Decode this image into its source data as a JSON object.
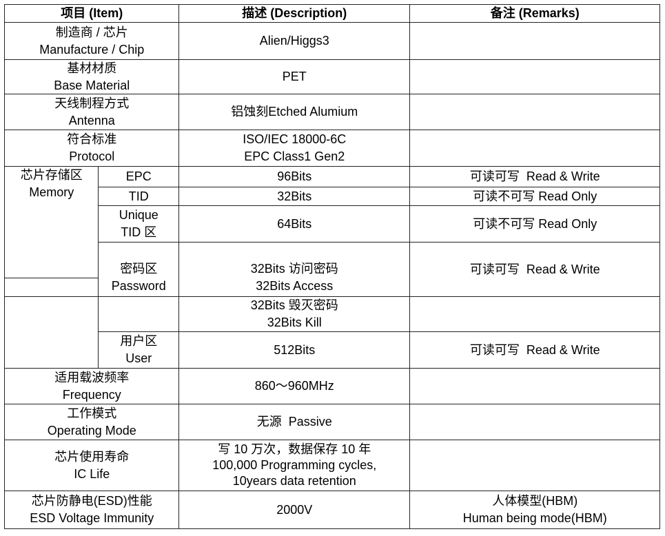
{
  "header": {
    "item": "项目 (Item)",
    "description": "描述 (Description)",
    "remarks": "备注 (Remarks)"
  },
  "rows": {
    "chip": {
      "item_cn": "制造商 / 芯片",
      "item_en": "Manufacture / Chip",
      "desc": "Alien/Higgs3",
      "remark": ""
    },
    "base": {
      "item_cn": "基材材质",
      "item_en": "Base Material",
      "desc": "PET",
      "remark": ""
    },
    "antenna": {
      "item_cn": "天线制程方式",
      "item_en": "Antenna",
      "desc": "铝蚀刻Etched Alumium",
      "remark": ""
    },
    "protocol": {
      "item_cn": "符合标准",
      "item_en": "Protocol",
      "desc1": "ISO/IEC 18000-6C",
      "desc2": "EPC Class1 Gen2",
      "remark": ""
    },
    "memory": {
      "item_cn": "芯片存储区",
      "item_en": "Memory",
      "epc": {
        "label": "EPC",
        "desc": "96Bits",
        "remark": "可读可写  Read & Write"
      },
      "tid": {
        "label": "TID",
        "desc": "32Bits",
        "remark": "可读不可写 Read Only"
      },
      "unique": {
        "label1": "Unique",
        "label2": "TID 区",
        "desc": "64Bits",
        "remark": "可读不可写 Read Only"
      },
      "password": {
        "label_cn": "密码区",
        "label_en": "Password",
        "desc1": "32Bits 访问密码",
        "desc2": "32Bits Access",
        "remark": "可读可写  Read & Write"
      },
      "kill": {
        "desc1": "32Bits 毁灭密码",
        "desc2": "32Bits Kill"
      },
      "user": {
        "label_cn": "用户区",
        "label_en": "User",
        "desc": "512Bits",
        "remark": "可读可写  Read & Write"
      }
    },
    "frequency": {
      "item_cn": "适用载波频率",
      "item_en": "Frequency",
      "desc": "860～960MHz",
      "remark": ""
    },
    "mode": {
      "item_cn": "工作模式",
      "item_en": "Operating Mode",
      "desc": "无源  Passive",
      "remark": ""
    },
    "life": {
      "item_cn": "芯片使用寿命",
      "item_en": "IC Life",
      "desc1": "写 10 万次，数据保存 10 年",
      "desc2": "100,000 Programming cycles,",
      "desc3": "10years data retention",
      "remark": ""
    },
    "esd": {
      "item_cn": "芯片防静电(ESD)性能",
      "item_en": "ESD Voltage Immunity",
      "desc": "2000V",
      "remark1": "人体模型(HBM)",
      "remark2": "Human being mode(HBM)"
    }
  }
}
